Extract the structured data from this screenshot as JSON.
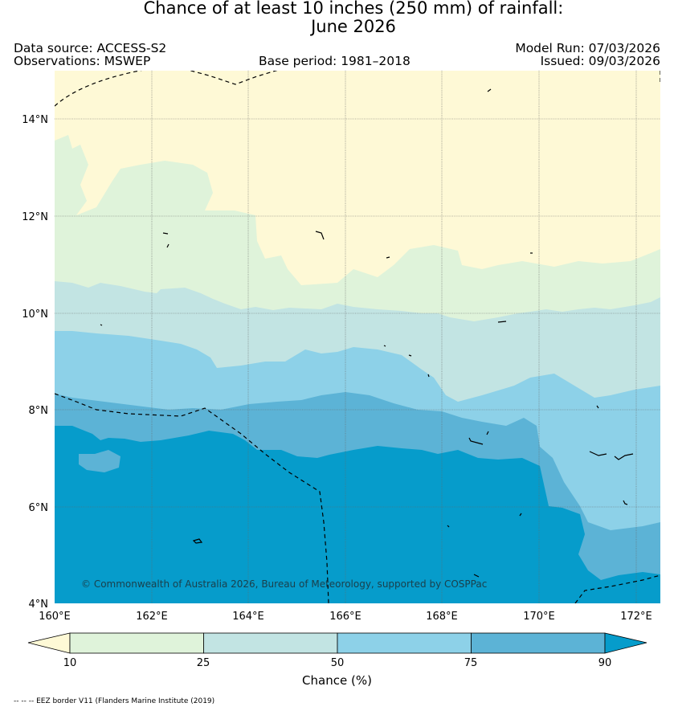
{
  "title": {
    "line1": "Chance of at least 10 inches (250  mm) of rainfall:",
    "line2": "June 2026"
  },
  "header": {
    "data_source": "Data source: ACCESS-S2",
    "observations": "Observations: MSWEP",
    "base_period": "Base period: 1981–2018",
    "model_run": "Model Run: 07/03/2026",
    "issued": "Issued: 09/03/2026"
  },
  "map": {
    "lon_range": [
      160,
      172.5
    ],
    "lat_range": [
      4,
      15
    ],
    "lat_ticks": [
      {
        "value": 14,
        "label": "14°N"
      },
      {
        "value": 12,
        "label": "12°N"
      },
      {
        "value": 10,
        "label": "10°N"
      },
      {
        "value": 8,
        "label": "8°N"
      },
      {
        "value": 6,
        "label": "6°N"
      },
      {
        "value": 4,
        "label": "4°N"
      }
    ],
    "lon_ticks": [
      {
        "value": 160,
        "label": "160°E"
      },
      {
        "value": 162,
        "label": "162°E"
      },
      {
        "value": 164,
        "label": "164°E"
      },
      {
        "value": 166,
        "label": "166°E"
      },
      {
        "value": 168,
        "label": "168°E"
      },
      {
        "value": 170,
        "label": "170°E"
      },
      {
        "value": 172,
        "label": "172°E"
      }
    ],
    "copyright": "© Commonwealth of Australia 2026, Bureau of Meteorology, supported by COSPPac"
  },
  "colorbar": {
    "title": "Chance (%)",
    "boundaries": [
      "10",
      "25",
      "50",
      "75",
      "90"
    ],
    "colors": {
      "below_10": "#fef9d6",
      "10_25": "#dff3da",
      "25_50": "#c2e4e3",
      "50_75": "#8dd1e8",
      "75_90": "#5cb3d6",
      "above_90": "#069ccb"
    }
  },
  "footer": {
    "legend": "-- -- -- EEZ border V11 (Flanders Marine Institute (2019)"
  }
}
